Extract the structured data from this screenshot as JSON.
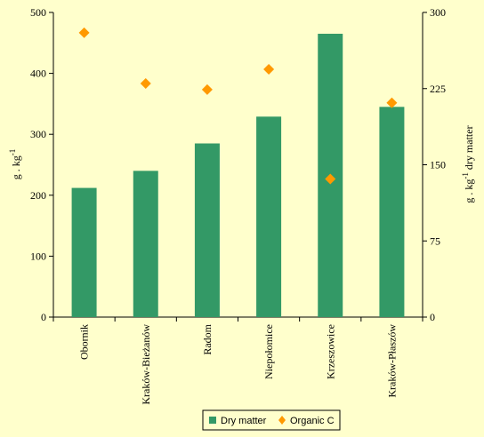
{
  "chart_data": {
    "type": "bar",
    "categories": [
      "Obornik",
      "Kraków-Bieżanów",
      "Radom",
      "Niepołomice",
      "Krzeszowice",
      "Kraków-Płaszów"
    ],
    "series": [
      {
        "name": "Dry matter",
        "type": "bar",
        "axis": "left",
        "color": "#339966",
        "values": [
          212,
          240,
          285,
          329,
          465,
          345
        ]
      },
      {
        "name": "Organic C",
        "type": "scatter",
        "axis": "right",
        "color": "#ff9900",
        "marker": "diamond",
        "values": [
          280,
          230,
          224,
          244,
          136,
          211
        ]
      }
    ],
    "ylim": [
      0,
      500
    ],
    "y2lim": [
      0,
      300
    ],
    "yticks": [
      0,
      100,
      200,
      300,
      400,
      500
    ],
    "y2ticks": [
      0,
      75,
      150,
      225,
      300
    ],
    "ylabel": {
      "main": "g . kg",
      "sup": "-1"
    },
    "y2label": {
      "main": "g . kg",
      "sup": "-1",
      "suffix": " dry matter"
    },
    "legend_position": "bottom",
    "grid": false,
    "background": "#ffffcc"
  }
}
